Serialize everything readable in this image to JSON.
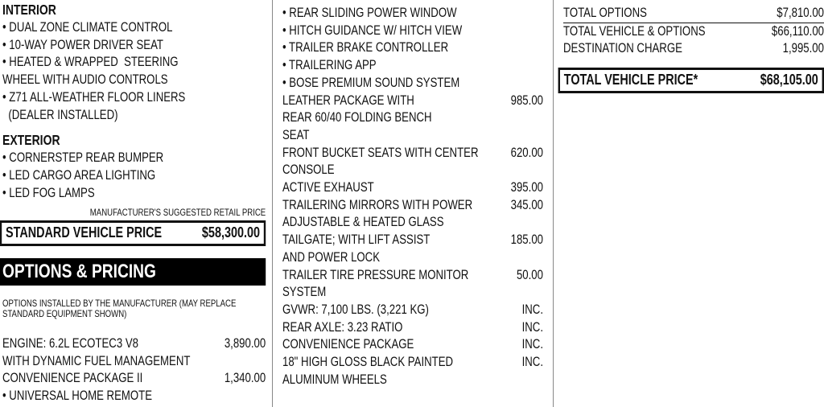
{
  "interior": {
    "heading": "INTERIOR",
    "items": [
      "• DUAL ZONE CLIMATE CONTROL",
      "• 10-WAY POWER DRIVER SEAT",
      "• HEATED & WRAPPED  STEERING",
      "WHEEL WITH AUDIO CONTROLS",
      "• Z71 ALL-WEATHER FLOOR LINERS",
      "  (DEALER INSTALLED)"
    ]
  },
  "exterior": {
    "heading": "EXTERIOR",
    "items": [
      "• CORNERSTEP REAR BUMPER",
      "• LED CARGO AREA LIGHTING",
      "• LED FOG LAMPS"
    ]
  },
  "msrp_label": "MANUFACTURER'S SUGGESTED RETAIL PRICE",
  "standard_price": {
    "label": "STANDARD VEHICLE PRICE",
    "value": "$58,300.00"
  },
  "options_banner": "OPTIONS & PRICING",
  "options_note": "OPTIONS INSTALLED BY THE MANUFACTURER (MAY REPLACE STANDARD EQUIPMENT SHOWN)",
  "options_col1": [
    {
      "label": "ENGINE:  6.2L ECOTEC3 V8",
      "price": "3,890.00"
    },
    {
      "label": "WITH DYNAMIC FUEL MANAGEMENT",
      "price": ""
    },
    {
      "label": "CONVENIENCE PACKAGE II",
      "price": "1,340.00"
    },
    {
      "label": "• UNIVERSAL HOME REMOTE",
      "price": ""
    }
  ],
  "options_col2": [
    {
      "label": "• REAR SLIDING POWER WINDOW",
      "price": ""
    },
    {
      "label": "• HITCH GUIDANCE W/ HITCH VIEW",
      "price": ""
    },
    {
      "label": "• TRAILER BRAKE CONTROLLER",
      "price": ""
    },
    {
      "label": "• TRAILERING APP",
      "price": ""
    },
    {
      "label": "• BOSE PREMIUM SOUND SYSTEM",
      "price": ""
    },
    {
      "label": "LEATHER PACKAGE WITH",
      "price": "985.00"
    },
    {
      "label": "REAR 60/40 FOLDING BENCH",
      "price": ""
    },
    {
      "label": "SEAT",
      "price": ""
    },
    {
      "label": "FRONT BUCKET SEATS WITH CENTER",
      "price": "620.00"
    },
    {
      "label": "CONSOLE",
      "price": ""
    },
    {
      "label": "ACTIVE EXHAUST",
      "price": "395.00"
    },
    {
      "label": "TRAILERING MIRRORS WITH POWER",
      "price": "345.00"
    },
    {
      "label": "ADJUSTABLE & HEATED GLASS",
      "price": ""
    },
    {
      "label": "TAILGATE; WITH LIFT ASSIST",
      "price": "185.00"
    },
    {
      "label": "AND POWER LOCK",
      "price": ""
    },
    {
      "label": "TRAILER TIRE PRESSURE MONITOR",
      "price": "50.00"
    },
    {
      "label": "SYSTEM",
      "price": ""
    },
    {
      "label": "GVWR: 7,100 LBS. (3,221 KG)",
      "price": "INC."
    },
    {
      "label": "REAR AXLE: 3.23 RATIO",
      "price": "INC."
    },
    {
      "label": "CONVENIENCE PACKAGE",
      "price": "INC."
    },
    {
      "label": "18\" HIGH GLOSS BLACK PAINTED",
      "price": "INC."
    },
    {
      "label": "ALUMINUM WHEELS",
      "price": ""
    }
  ],
  "totals": [
    {
      "label": "TOTAL OPTIONS",
      "value": "$7,810.00"
    },
    {
      "label": "TOTAL VEHICLE & OPTIONS",
      "value": "$66,110.00"
    },
    {
      "label": "DESTINATION CHARGE",
      "value": "1,995.00"
    }
  ],
  "total_price": {
    "label": "TOTAL VEHICLE PRICE*",
    "value": "$68,105.00"
  }
}
